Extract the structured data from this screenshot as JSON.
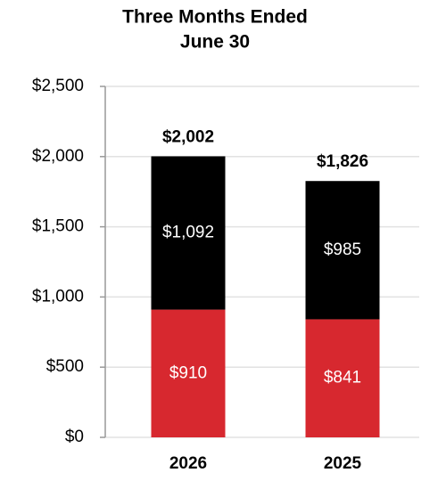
{
  "chart_data": {
    "type": "stacked-bar",
    "title": [
      "Three Months Ended",
      "June 30"
    ],
    "categories": [
      "2026",
      "2025"
    ],
    "series": [
      {
        "color": "#d7282f",
        "values": [
          910,
          841
        ],
        "value_labels": [
          "$910",
          "$841"
        ]
      },
      {
        "color": "#000000",
        "values": [
          1092,
          985
        ],
        "value_labels": [
          "$1,092",
          "$985"
        ]
      }
    ],
    "totals": [
      2002,
      1826
    ],
    "total_labels": [
      "$2,002",
      "$1,826"
    ],
    "ylim": [
      0,
      2500
    ],
    "yticks": [
      {
        "value": 0,
        "label": "$0"
      },
      {
        "value": 500,
        "label": "$500"
      },
      {
        "value": 1000,
        "label": "$1,000"
      },
      {
        "value": 1500,
        "label": "$1,500"
      },
      {
        "value": 2000,
        "label": "$2,000"
      },
      {
        "value": 2500,
        "label": "$2,500"
      }
    ],
    "grid": true
  }
}
